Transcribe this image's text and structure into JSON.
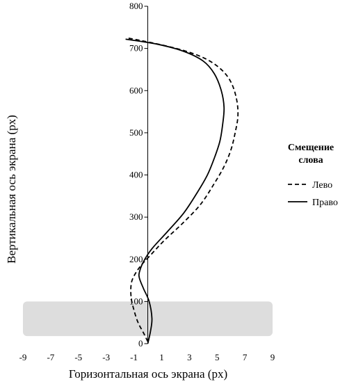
{
  "chart_data": {
    "type": "line",
    "title": "",
    "xlabel": "Горизонтальная ось экрана (px)",
    "ylabel": "Вертикальная ось экрана (px)",
    "xlim": [
      -9,
      9
    ],
    "ylim": [
      0,
      800
    ],
    "xticks": [
      "-9",
      "-7",
      "-5",
      "-3",
      "-1",
      "1",
      "3",
      "5",
      "7",
      "9"
    ],
    "yticks": [
      "0",
      "100",
      "200",
      "300",
      "400",
      "500",
      "600",
      "700",
      "800"
    ],
    "grid": false,
    "shaded_band": {
      "y_from": 18,
      "y_to": 100,
      "color": "#dddddd"
    },
    "legend": {
      "title_line1": "Смещение",
      "title_line2": "слова",
      "placement": "right"
    },
    "series": [
      {
        "name": "Лево",
        "style": "dashed",
        "color": "#000000",
        "x": [
          0.0,
          -0.3,
          -0.7,
          -1.0,
          -1.2,
          -1.2,
          -1.0,
          -0.5,
          0.2,
          1.2,
          2.5,
          3.8,
          4.8,
          5.5,
          6.0,
          6.3,
          6.5,
          6.4,
          6.0,
          5.3,
          4.2,
          2.6,
          0.5,
          -1.5
        ],
        "y": [
          5,
          25,
          50,
          80,
          110,
          140,
          160,
          185,
          210,
          245,
          285,
          330,
          380,
          420,
          460,
          500,
          540,
          580,
          620,
          650,
          675,
          695,
          712,
          725
        ]
      },
      {
        "name": "Право",
        "style": "solid",
        "color": "#000000",
        "x": [
          0.0,
          0.2,
          0.3,
          0.1,
          -0.3,
          -0.6,
          -0.6,
          -0.3,
          0.3,
          1.4,
          2.6,
          3.6,
          4.3,
          4.8,
          5.2,
          5.4,
          5.5,
          5.3,
          4.8,
          4.0,
          2.6,
          0.7,
          -1.6
        ],
        "y": [
          0,
          30,
          60,
          100,
          130,
          155,
          170,
          195,
          225,
          265,
          310,
          360,
          400,
          440,
          480,
          520,
          560,
          600,
          640,
          670,
          693,
          710,
          722
        ]
      }
    ]
  }
}
